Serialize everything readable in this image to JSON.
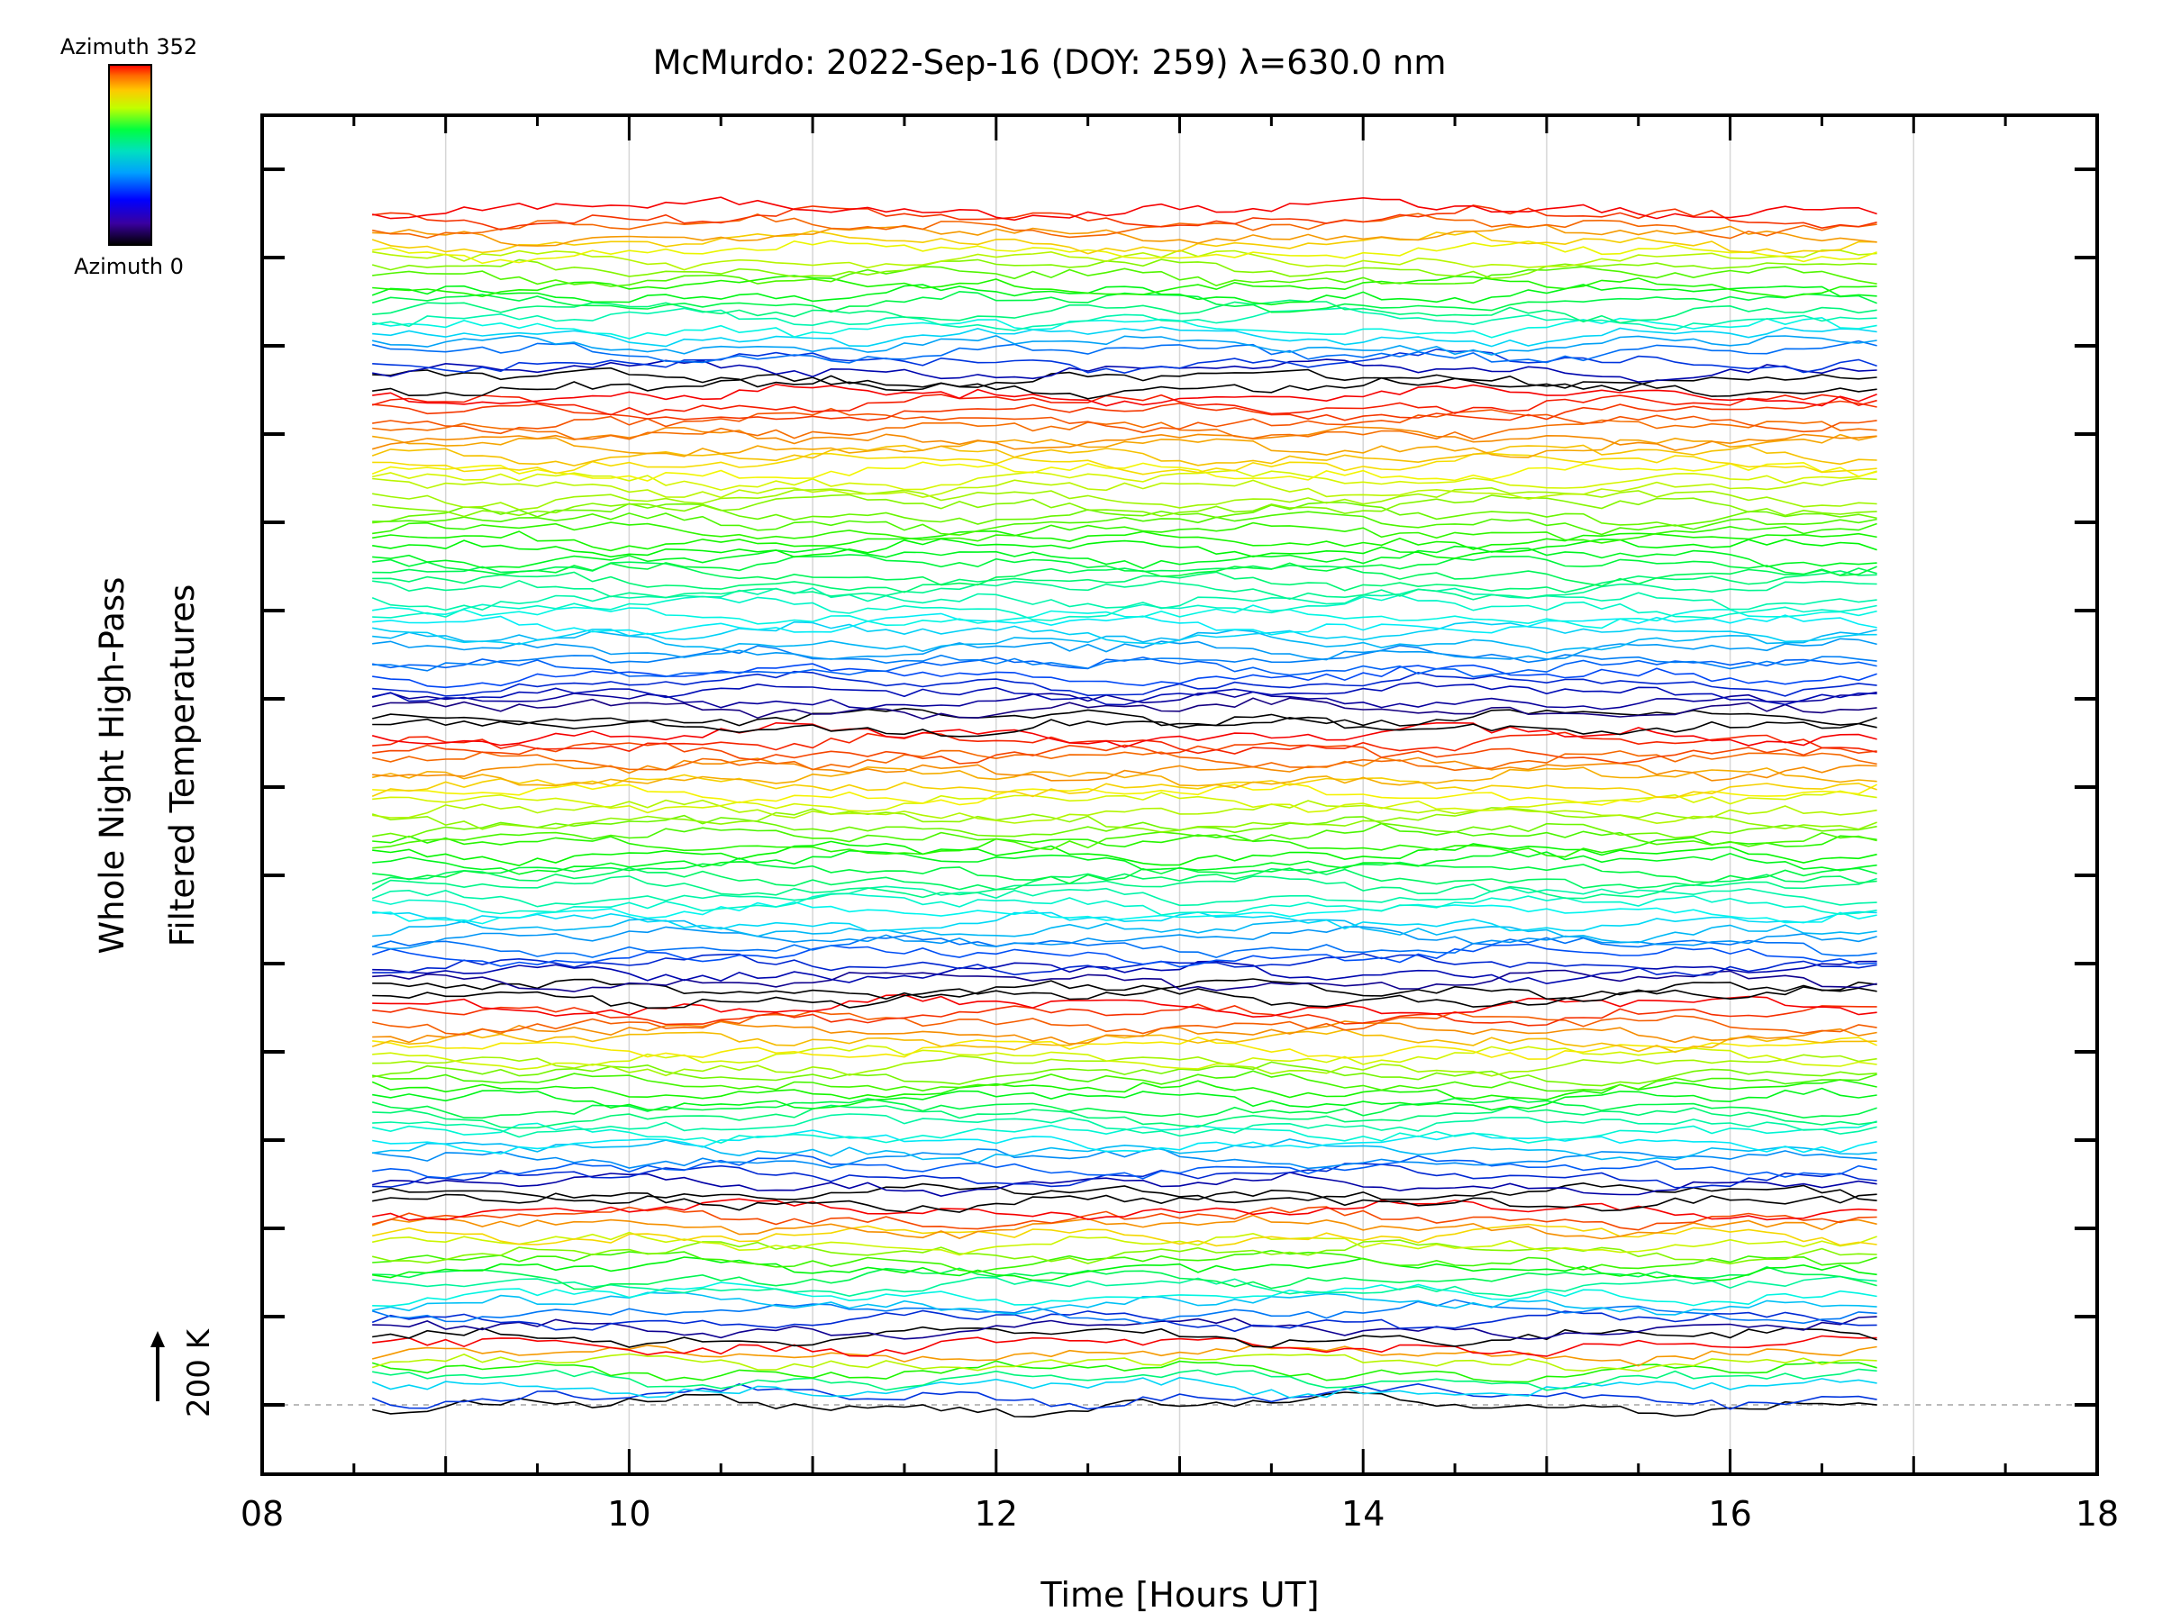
{
  "chart_data": {
    "type": "line",
    "title": "McMurdo: 2022-Sep-16 (DOY: 259) λ=630.0 nm",
    "xlabel": "Time [Hours UT]",
    "ylabel_line1": "Whole Night High-Pass",
    "ylabel_line2": "Filtered Temperatures",
    "xlim": [
      8,
      18
    ],
    "x_ticks": [
      {
        "value": 8,
        "label": "08"
      },
      {
        "value": 10,
        "label": "10"
      },
      {
        "value": 12,
        "label": "12"
      },
      {
        "value": 14,
        "label": "14"
      },
      {
        "value": 16,
        "label": "16"
      },
      {
        "value": 18,
        "label": "18"
      }
    ],
    "grid": "vertical lines at each hour",
    "scale_label": "200 K",
    "colorbar": {
      "top_label": "Azimuth 352",
      "bottom_label": "Azimuth 0",
      "colormap": "rainbow",
      "range": [
        0,
        352
      ]
    },
    "time_range": [
      8.6,
      16.8
    ],
    "series_count": 142,
    "traces_per_ring": [
      8,
      16,
      24,
      32,
      40,
      22
    ],
    "color_bottom": "#000000",
    "color_top": "#ff0000"
  }
}
